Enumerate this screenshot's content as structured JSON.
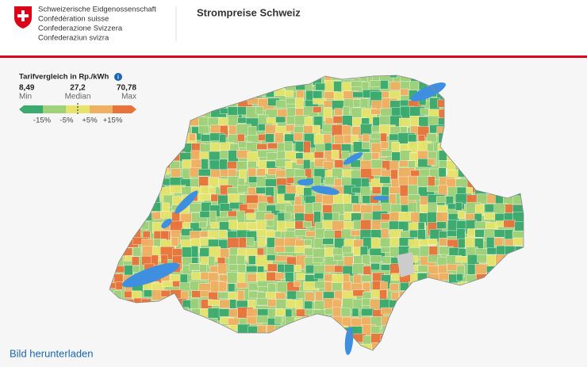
{
  "header": {
    "org_lines": [
      "Schweizerische Eidgenossenschaft",
      "Confédération suisse",
      "Confederazione Svizzera",
      "Confederaziun svizra"
    ],
    "title": "Strompreise Schweiz"
  },
  "legend": {
    "title": "Tarifvergleich in Rp./kWh",
    "stats": [
      {
        "value": "8,49",
        "label": "Min"
      },
      {
        "value": "27,2",
        "label": "Median"
      },
      {
        "value": "70,78",
        "label": "Max"
      }
    ],
    "bins": [
      "-15%",
      "-5%",
      "+5%",
      "+15%"
    ]
  },
  "footer": {
    "link": "Bild herunterladen"
  }
}
